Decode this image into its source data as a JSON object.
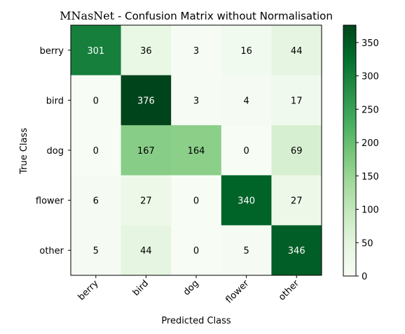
{
  "chart_data": {
    "type": "heatmap",
    "title_prefix": "MNasNet",
    "title_rest": " - Confusion Matrix without Normalisation",
    "xlabel": "Predicted Class",
    "ylabel": "True Class",
    "x_categories": [
      "berry",
      "bird",
      "dog",
      "flower",
      "other"
    ],
    "y_categories": [
      "berry",
      "bird",
      "dog",
      "flower",
      "other"
    ],
    "values": [
      [
        301,
        36,
        3,
        16,
        44
      ],
      [
        0,
        376,
        3,
        4,
        17
      ],
      [
        0,
        167,
        164,
        0,
        69
      ],
      [
        6,
        27,
        0,
        340,
        27
      ],
      [
        5,
        44,
        0,
        5,
        346
      ]
    ],
    "colorscale": "Greens",
    "colorbar_range": [
      0,
      376
    ],
    "colorbar_ticks": [
      0,
      50,
      100,
      150,
      200,
      250,
      300,
      350
    ]
  }
}
